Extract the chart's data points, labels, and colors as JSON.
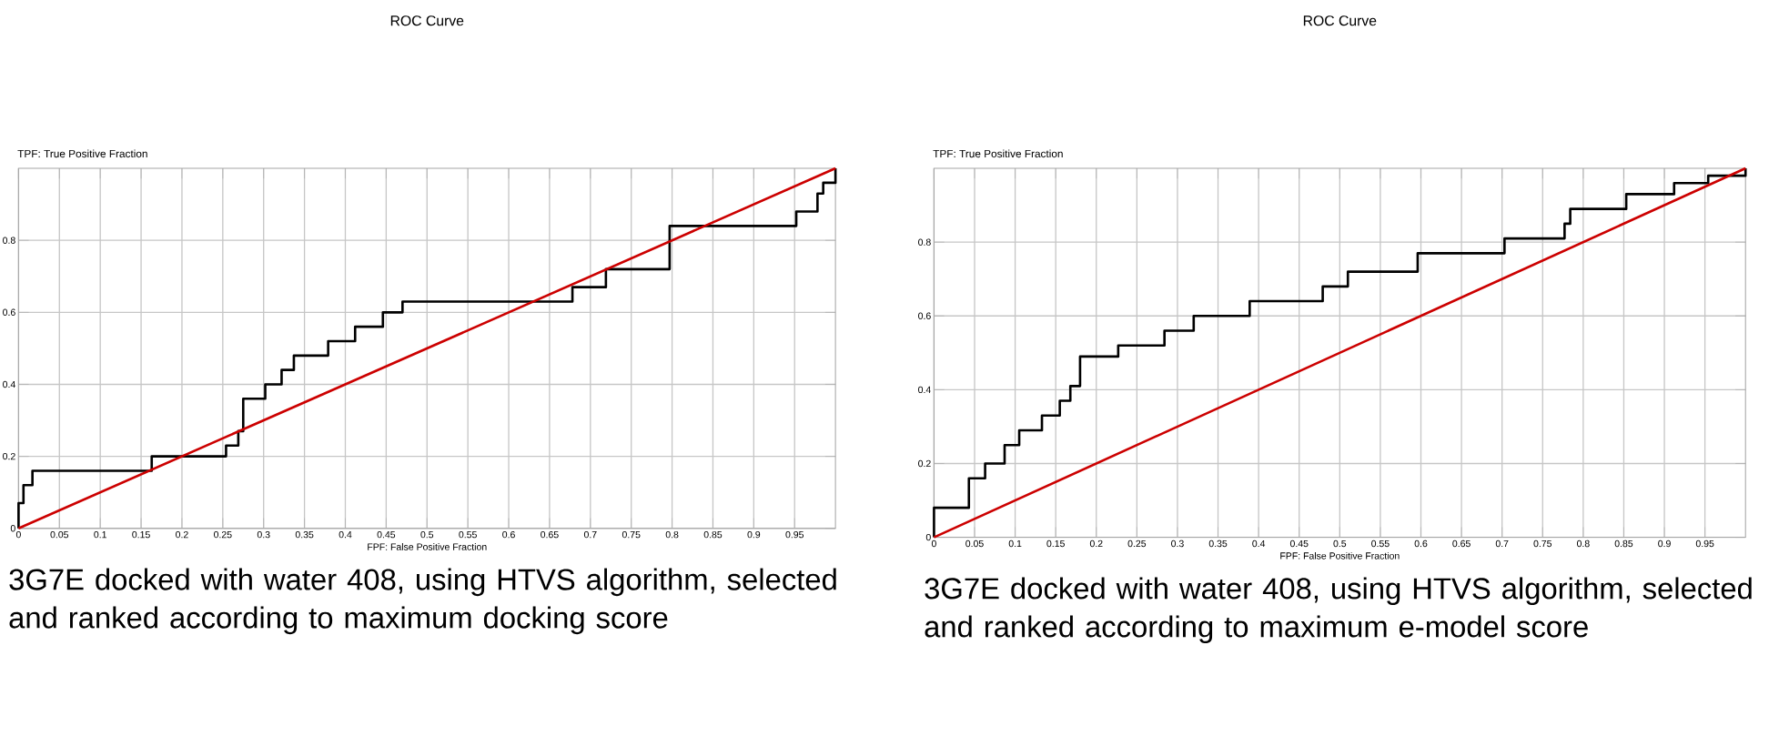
{
  "chart_data": [
    {
      "type": "step",
      "title": "ROC Curve",
      "xlabel": "FPF: False Positive Fraction",
      "ylabel": "TPF: True Positive Fraction",
      "xlim": [
        0,
        1
      ],
      "ylim": [
        0,
        1
      ],
      "xticks": [
        0,
        0.05,
        0.1,
        0.15,
        0.2,
        0.25,
        0.3,
        0.35,
        0.4,
        0.45,
        0.5,
        0.55,
        0.6,
        0.65,
        0.7,
        0.75,
        0.8,
        0.85,
        0.9,
        0.95
      ],
      "yticks": [
        0,
        0.2,
        0.4,
        0.6,
        0.8
      ],
      "grid": true,
      "marker": "none",
      "series": [
        {
          "color": "#000000",
          "x": [
            0,
            0,
            0.006,
            0.017,
            0.163,
            0.254,
            0.269,
            0.275,
            0.302,
            0.322,
            0.337,
            0.379,
            0.412,
            0.446,
            0.47,
            0.678,
            0.719,
            0.797,
            0.952,
            0.978,
            0.985,
            1
          ],
          "values": [
            0,
            0.07,
            0.12,
            0.16,
            0.2,
            0.23,
            0.27,
            0.36,
            0.4,
            0.44,
            0.48,
            0.52,
            0.56,
            0.6,
            0.63,
            0.67,
            0.72,
            0.84,
            0.88,
            0.93,
            0.96,
            1
          ]
        },
        {
          "type": "line",
          "color": "#cc0000",
          "x": [
            0,
            1
          ],
          "values": [
            0,
            1
          ]
        }
      ],
      "annotations": [
        "3G7E docked with water 408, using HTVS algorithm, selected and ranked according to maximum docking score"
      ]
    },
    {
      "type": "step",
      "title": "ROC Curve",
      "xlabel": "FPF: False Positive Fraction",
      "ylabel": "TPF: True Positive Fraction",
      "xlim": [
        0,
        1
      ],
      "ylim": [
        0,
        1
      ],
      "xticks": [
        0,
        0.05,
        0.1,
        0.15,
        0.2,
        0.25,
        0.3,
        0.35,
        0.4,
        0.45,
        0.5,
        0.55,
        0.6,
        0.65,
        0.7,
        0.75,
        0.8,
        0.85,
        0.9,
        0.95
      ],
      "yticks": [
        0,
        0.2,
        0.4,
        0.6,
        0.8
      ],
      "grid": true,
      "marker": "none",
      "series": [
        {
          "color": "#000000",
          "x": [
            0,
            0,
            0.043,
            0.063,
            0.087,
            0.105,
            0.133,
            0.155,
            0.168,
            0.18,
            0.227,
            0.284,
            0.32,
            0.389,
            0.479,
            0.51,
            0.596,
            0.703,
            0.777,
            0.784,
            0.853,
            0.912,
            0.954,
            1
          ],
          "values": [
            0,
            0.08,
            0.16,
            0.2,
            0.25,
            0.29,
            0.33,
            0.37,
            0.41,
            0.49,
            0.52,
            0.56,
            0.6,
            0.64,
            0.68,
            0.72,
            0.77,
            0.81,
            0.85,
            0.89,
            0.93,
            0.96,
            0.98,
            1
          ]
        },
        {
          "type": "line",
          "color": "#cc0000",
          "x": [
            0,
            1
          ],
          "values": [
            0,
            1
          ]
        }
      ],
      "annotations": [
        "3G7E docked with water 408, using HTVS algorithm, selected and ranked according to maximum e-model score"
      ]
    }
  ]
}
